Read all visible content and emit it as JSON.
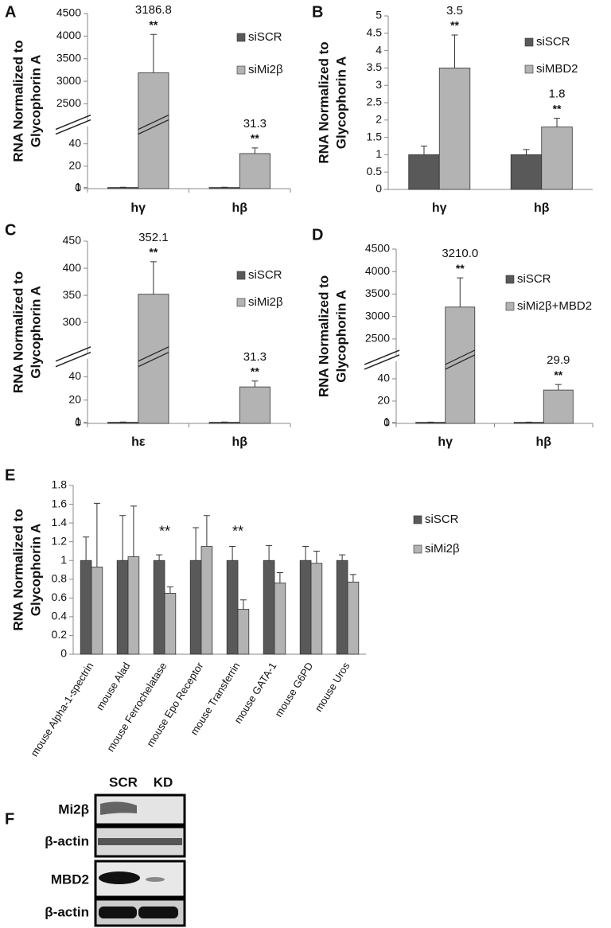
{
  "chart_data": [
    {
      "type": "bar",
      "panel_label": "A",
      "y_label": [
        "RNA Normalized to",
        "Glycophorin A"
      ],
      "categories": [
        "hγ",
        "hβ"
      ],
      "ylim": [
        0,
        4500
      ],
      "y_break": [
        50,
        2250
      ],
      "yticks": [
        0,
        1,
        20,
        40,
        2500,
        3000,
        3500,
        4000,
        4500
      ],
      "series": [
        {
          "name": "siSCR",
          "color": "#595959",
          "values": [
            1,
            1
          ],
          "errors": [
            0.2,
            0.2
          ]
        },
        {
          "name": "siMi2β",
          "color": "#b3b3b3",
          "values": [
            3186.8,
            31.3
          ],
          "errors": [
            850,
            5
          ],
          "value_labels": [
            "3186.8",
            "31.3"
          ],
          "significance": [
            "**",
            "**"
          ]
        }
      ]
    },
    {
      "type": "bar",
      "panel_label": "B",
      "y_label": [
        "RNA Normalized to",
        "Glycophorin A"
      ],
      "categories": [
        "hγ",
        "hβ"
      ],
      "ylim": [
        0,
        5
      ],
      "yticks": [
        0,
        0.5,
        1,
        1.5,
        2,
        2.5,
        3,
        3.5,
        4,
        4.5,
        5
      ],
      "series": [
        {
          "name": "siSCR",
          "color": "#595959",
          "values": [
            1,
            1
          ],
          "errors": [
            0.25,
            0.15
          ]
        },
        {
          "name": "siMBD2",
          "color": "#b3b3b3",
          "values": [
            3.5,
            1.8
          ],
          "errors": [
            0.95,
            0.25
          ],
          "value_labels": [
            "3.5",
            "1.8"
          ],
          "significance": [
            "**",
            "**"
          ]
        }
      ]
    },
    {
      "type": "bar",
      "panel_label": "C",
      "y_label": [
        "RNA Normalized to",
        "Glycophorin A"
      ],
      "categories": [
        "hε",
        "hβ"
      ],
      "ylim": [
        0,
        450
      ],
      "y_break": [
        50,
        255
      ],
      "yticks": [
        0,
        1,
        20,
        40,
        300,
        350,
        400,
        450
      ],
      "series": [
        {
          "name": "siSCR",
          "color": "#595959",
          "values": [
            1,
            1
          ],
          "errors": [
            0.2,
            0.2
          ]
        },
        {
          "name": "siMi2β",
          "color": "#b3b3b3",
          "values": [
            352.1,
            31.3
          ],
          "errors": [
            60,
            5
          ],
          "value_labels": [
            "352.1",
            "31.3"
          ],
          "significance": [
            "**",
            "**"
          ]
        }
      ]
    },
    {
      "type": "bar",
      "panel_label": "D",
      "y_label": [
        "RNA Normalized to",
        "Glycophorin A"
      ],
      "categories": [
        "hγ",
        "hβ"
      ],
      "ylim": [
        0,
        4500
      ],
      "y_break": [
        50,
        2250
      ],
      "yticks": [
        0,
        1,
        20,
        40,
        2500,
        3000,
        3500,
        4000,
        4500
      ],
      "series": [
        {
          "name": "siSCR",
          "color": "#595959",
          "values": [
            1,
            1
          ],
          "errors": [
            0.2,
            0.2
          ]
        },
        {
          "name": "siMi2β+MBD2",
          "color": "#b3b3b3",
          "values": [
            3210.0,
            29.9
          ],
          "errors": [
            650,
            5
          ],
          "value_labels": [
            "3210.0",
            "29.9"
          ],
          "significance": [
            "**",
            "**"
          ]
        }
      ]
    },
    {
      "type": "bar",
      "panel_label": "E",
      "y_label": [
        "RNA Normalized to",
        "Glycophorin A"
      ],
      "categories": [
        "mouse Alpha-1-spectrin",
        "mouse Alad",
        "mouse Ferrochelatase",
        "mouse Epo Receptor",
        "mouse Transferrin",
        "mouse GATA-1",
        "mouse G6PD",
        "mouse Uros"
      ],
      "ylim": [
        0,
        1.8
      ],
      "yticks": [
        0,
        0.2,
        0.4,
        0.6,
        0.8,
        1,
        1.2,
        1.4,
        1.6,
        1.8
      ],
      "significance": [
        null,
        null,
        "**",
        null,
        "**",
        null,
        null,
        null
      ],
      "series": [
        {
          "name": "siSCR",
          "color": "#595959",
          "values": [
            1,
            1,
            1,
            1,
            1,
            1,
            1,
            1
          ],
          "errors": [
            0.25,
            0.48,
            0.06,
            0.35,
            0.15,
            0.16,
            0.15,
            0.06
          ]
        },
        {
          "name": "siMi2β",
          "color": "#b3b3b3",
          "values": [
            0.93,
            1.04,
            0.65,
            1.15,
            0.48,
            0.76,
            0.97,
            0.77
          ],
          "errors": [
            0.68,
            0.54,
            0.07,
            0.33,
            0.1,
            0.11,
            0.13,
            0.08
          ]
        }
      ]
    }
  ],
  "blot": {
    "panel_label": "F",
    "columns": [
      "SCR",
      "KD"
    ],
    "rows": [
      "Mi2β",
      "β-actin",
      "MBD2",
      "β-actin"
    ]
  }
}
